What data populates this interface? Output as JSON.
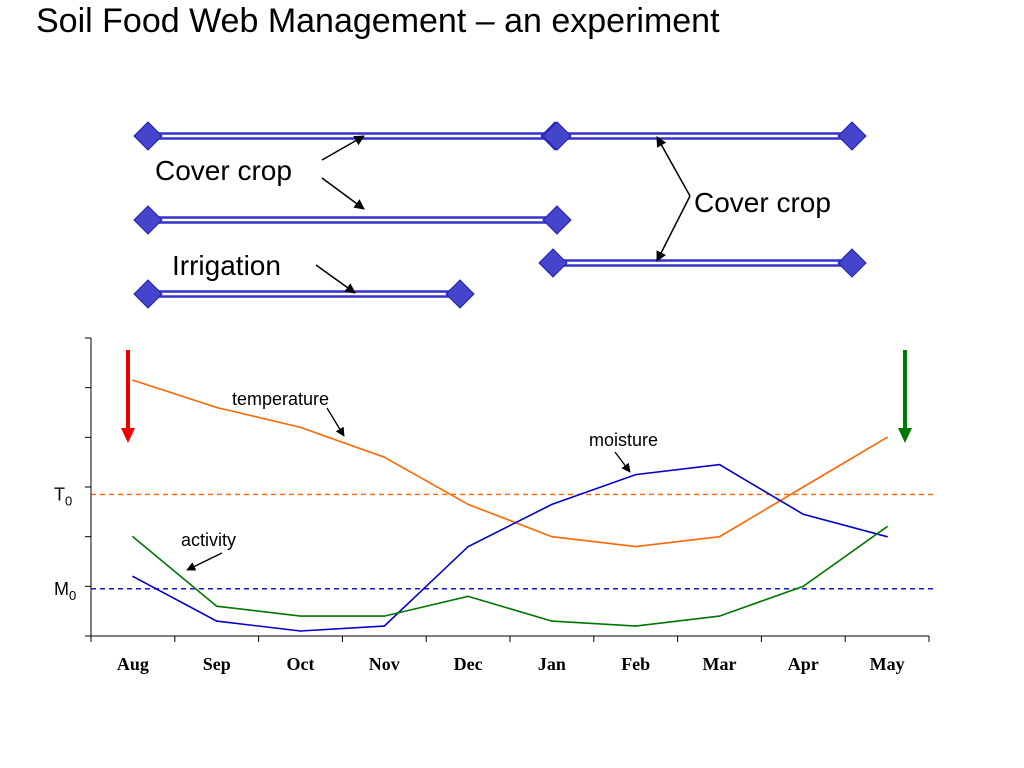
{
  "title": "Soil Food Web Management – an experiment",
  "timeline": {
    "cover_crop_left": "Cover crop",
    "irrigation": "Irrigation",
    "cover_crop_right": "Cover crop",
    "bar_color": "#3333cc",
    "bars": [
      {
        "name": "left-top-bar",
        "start": "Aug",
        "end": "Jan"
      },
      {
        "name": "left-middle-bar",
        "start": "Aug",
        "end": "Jan"
      },
      {
        "name": "left-bottom-bar",
        "start": "Aug",
        "end": "Dec"
      },
      {
        "name": "right-top-bar",
        "start": "Jan",
        "end": "May"
      },
      {
        "name": "right-bottom-bar",
        "start": "Jan",
        "end": "May"
      }
    ]
  },
  "chart_data": {
    "type": "line",
    "categories": [
      "Aug",
      "Sep",
      "Oct",
      "Nov",
      "Dec",
      "Jan",
      "Feb",
      "Mar",
      "Apr",
      "May"
    ],
    "ylim": [
      0,
      6
    ],
    "grid": false,
    "series": [
      {
        "name": "temperature",
        "color": "#ff6600",
        "values": [
          5.15,
          4.6,
          4.2,
          3.6,
          2.65,
          2.0,
          1.8,
          2.0,
          3.0,
          4.0
        ]
      },
      {
        "name": "moisture",
        "color": "#0000cc",
        "values": [
          1.2,
          0.3,
          0.1,
          0.2,
          1.8,
          2.65,
          3.25,
          3.45,
          2.45,
          2.0
        ]
      },
      {
        "name": "activity",
        "color": "#007700",
        "values": [
          2.0,
          0.6,
          0.4,
          0.4,
          0.8,
          0.3,
          0.2,
          0.4,
          1.0,
          2.2
        ]
      }
    ],
    "reference_lines": [
      {
        "label_base": "T",
        "label_sub": "0",
        "value": 2.85,
        "color": "#ff6600"
      },
      {
        "label_base": "M",
        "label_sub": "0",
        "value": 0.95,
        "color": "#0000cc"
      }
    ],
    "markers": [
      {
        "name": "start-arrow",
        "at": "Aug",
        "color": "#ee0000"
      },
      {
        "name": "end-arrow",
        "at": "May",
        "color": "#007700"
      }
    ]
  }
}
